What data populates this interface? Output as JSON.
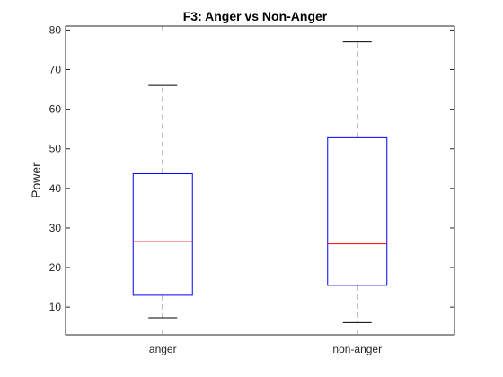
{
  "chart_data": {
    "type": "boxplot",
    "title": "F3: Anger vs Non-Anger",
    "xlabel": "",
    "ylabel": "Power",
    "ylim": [
      3,
      81
    ],
    "yticks": [
      10,
      20,
      30,
      40,
      50,
      60,
      70,
      80
    ],
    "categories": [
      "anger",
      "non-anger"
    ],
    "boxes": [
      {
        "category": "anger",
        "whisker_low": 7.3,
        "q1": 13.0,
        "median": 26.6,
        "q3": 43.7,
        "whisker_high": 66.0
      },
      {
        "category": "non-anger",
        "whisker_low": 6.1,
        "q1": 15.5,
        "median": 26.0,
        "q3": 52.8,
        "whisker_high": 77.0
      }
    ],
    "grid": false,
    "colors": {
      "box": "#0000ff",
      "median": "#ff0000",
      "whisker": "#000000",
      "axis": "#262626"
    }
  }
}
